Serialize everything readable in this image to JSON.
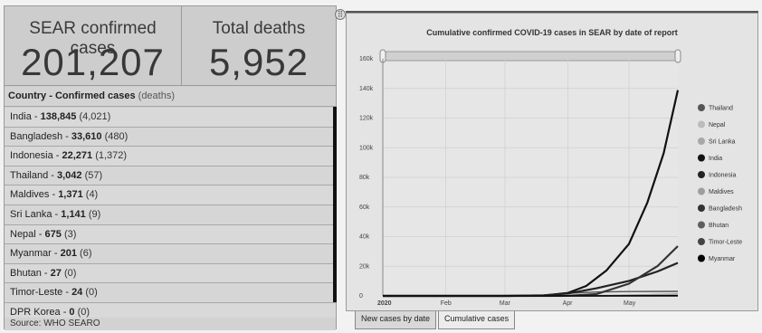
{
  "stats": {
    "cases_label": "SEAR confirmed cases",
    "cases_value": "201,207",
    "deaths_label": "Total deaths",
    "deaths_value": "5,952"
  },
  "list": {
    "header_bold": "Country - Confirmed cases",
    "header_paren": "(deaths)",
    "rows": [
      {
        "country": "India",
        "cases": "138,845",
        "deaths": "(4,021)"
      },
      {
        "country": "Bangladesh",
        "cases": "33,610",
        "deaths": "(480)"
      },
      {
        "country": "Indonesia",
        "cases": "22,271",
        "deaths": "(1,372)"
      },
      {
        "country": "Thailand",
        "cases": "3,042",
        "deaths": "(57)"
      },
      {
        "country": "Maldives",
        "cases": "1,371",
        "deaths": "(4)"
      },
      {
        "country": "Sri Lanka",
        "cases": "1,141",
        "deaths": "(9)"
      },
      {
        "country": "Nepal",
        "cases": "675",
        "deaths": "(3)"
      },
      {
        "country": "Myanmar",
        "cases": "201",
        "deaths": "(6)"
      },
      {
        "country": "Bhutan",
        "cases": "27",
        "deaths": "(0)"
      },
      {
        "country": "Timor-Leste",
        "cases": "24",
        "deaths": "(0)"
      },
      {
        "country": "DPR Korea",
        "cases": "0",
        "deaths": "(0)"
      }
    ],
    "source": "Source: WHO SEARO"
  },
  "splitter_icon": "resize-handle-icon",
  "tabs": [
    "New cases by date",
    "Cumulative cases"
  ],
  "active_tab": 1,
  "chart_data": {
    "type": "line",
    "title": "Cumulative confirmed COVID-19 cases in SEAR by date of report",
    "xlabel": "",
    "ylabel": "",
    "x_ticks": [
      "2020",
      "Feb",
      "Mar",
      "Apr",
      "May"
    ],
    "y_ticks": [
      "0",
      "20k",
      "40k",
      "60k",
      "80k",
      "100k",
      "120k",
      "140k",
      "160k"
    ],
    "ylim": [
      0,
      160000
    ],
    "x_domain": [
      "2020-01-01",
      "2020-05-25"
    ],
    "grid": true,
    "legend_position": "right",
    "series": [
      {
        "name": "Thailand",
        "color": "#555555",
        "points": [
          [
            "2020-01-13",
            1
          ],
          [
            "2020-03-01",
            42
          ],
          [
            "2020-03-20",
            322
          ],
          [
            "2020-04-01",
            1771
          ],
          [
            "2020-04-15",
            2643
          ],
          [
            "2020-05-01",
            2960
          ],
          [
            "2020-05-25",
            3042
          ]
        ]
      },
      {
        "name": "Nepal",
        "color": "#bcbcbc",
        "points": [
          [
            "2020-01-24",
            1
          ],
          [
            "2020-04-01",
            5
          ],
          [
            "2020-04-25",
            49
          ],
          [
            "2020-05-10",
            134
          ],
          [
            "2020-05-25",
            675
          ]
        ]
      },
      {
        "name": "Sri Lanka",
        "color": "#a8a8a8",
        "points": [
          [
            "2020-01-27",
            1
          ],
          [
            "2020-03-15",
            18
          ],
          [
            "2020-04-01",
            146
          ],
          [
            "2020-04-20",
            304
          ],
          [
            "2020-05-05",
            755
          ],
          [
            "2020-05-25",
            1141
          ]
        ]
      },
      {
        "name": "India",
        "color": "#111111",
        "points": [
          [
            "2020-01-30",
            1
          ],
          [
            "2020-03-01",
            3
          ],
          [
            "2020-03-20",
            236
          ],
          [
            "2020-04-01",
            1998
          ],
          [
            "2020-04-10",
            6725
          ],
          [
            "2020-04-20",
            17265
          ],
          [
            "2020-05-01",
            35043
          ],
          [
            "2020-05-10",
            62939
          ],
          [
            "2020-05-18",
            96169
          ],
          [
            "2020-05-25",
            138845
          ]
        ]
      },
      {
        "name": "Indonesia",
        "color": "#222222",
        "points": [
          [
            "2020-03-02",
            2
          ],
          [
            "2020-03-20",
            369
          ],
          [
            "2020-04-01",
            1677
          ],
          [
            "2020-04-15",
            5136
          ],
          [
            "2020-05-01",
            10118
          ],
          [
            "2020-05-15",
            16496
          ],
          [
            "2020-05-25",
            22271
          ]
        ]
      },
      {
        "name": "Maldives",
        "color": "#9e9e9e",
        "points": [
          [
            "2020-03-07",
            2
          ],
          [
            "2020-04-15",
            25
          ],
          [
            "2020-05-01",
            491
          ],
          [
            "2020-05-15",
            983
          ],
          [
            "2020-05-25",
            1371
          ]
        ]
      },
      {
        "name": "Bangladesh",
        "color": "#333333",
        "points": [
          [
            "2020-03-08",
            3
          ],
          [
            "2020-04-01",
            54
          ],
          [
            "2020-04-15",
            1231
          ],
          [
            "2020-05-01",
            8238
          ],
          [
            "2020-05-15",
            20065
          ],
          [
            "2020-05-25",
            33610
          ]
        ]
      },
      {
        "name": "Bhutan",
        "color": "#5e5e5e",
        "points": [
          [
            "2020-03-06",
            1
          ],
          [
            "2020-04-15",
            5
          ],
          [
            "2020-05-25",
            27
          ]
        ]
      },
      {
        "name": "Timor-Leste",
        "color": "#444444",
        "points": [
          [
            "2020-03-21",
            1
          ],
          [
            "2020-04-15",
            18
          ],
          [
            "2020-05-25",
            24
          ]
        ]
      },
      {
        "name": "Myanmar",
        "color": "#000000",
        "points": [
          [
            "2020-03-23",
            2
          ],
          [
            "2020-04-15",
            74
          ],
          [
            "2020-05-01",
            151
          ],
          [
            "2020-05-25",
            201
          ]
        ]
      }
    ]
  }
}
